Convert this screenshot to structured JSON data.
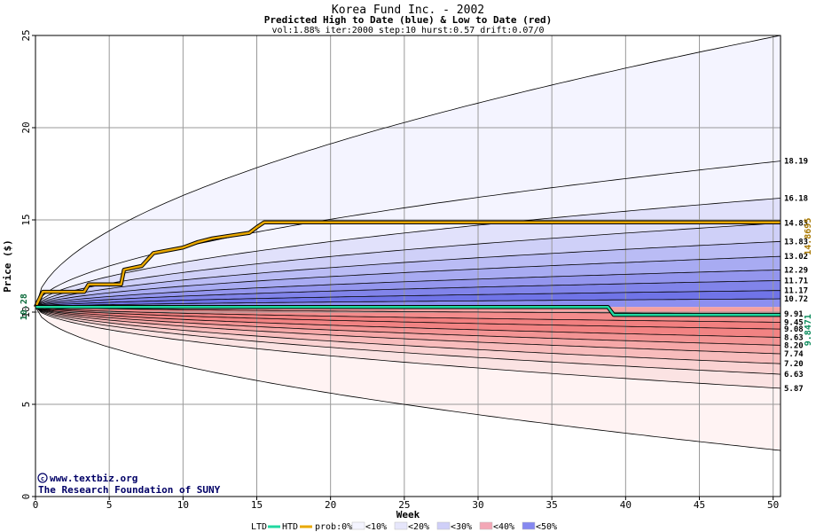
{
  "chart_data": {
    "type": "area",
    "title": "Korea Fund Inc. - 2002",
    "subtitle": "Predicted High to Date (blue) &  Low to Date (red)",
    "params": "vol:1.88% iter:2000 step:10 hurst:0.57 drift:0.07/0",
    "xlabel": "Week",
    "ylabel": "Price ($)",
    "xlim": [
      0,
      50.5
    ],
    "ylim": [
      0,
      25
    ],
    "xticks": [
      0,
      5,
      10,
      15,
      20,
      25,
      30,
      35,
      40,
      45,
      50
    ],
    "yticks": [
      0,
      5,
      10,
      15,
      20,
      25
    ],
    "grid": true,
    "start_price": 10.28,
    "start_price_label": "10.28",
    "max_htd": 14.8695,
    "max_htd_label": "14.8695",
    "min_ltd": 9.8471,
    "min_ltd_label": "9.8471",
    "high_levels": [
      18.19,
      16.18,
      14.83,
      13.83,
      13.02,
      12.29,
      11.71,
      11.17,
      10.72
    ],
    "high_labels": [
      "18.19",
      "16.18",
      "14.83",
      "13.83",
      "13.02",
      "12.29",
      "11.71",
      "11.17",
      "10.72"
    ],
    "low_levels": [
      9.91,
      9.45,
      9.08,
      8.63,
      8.2,
      7.74,
      7.2,
      6.63,
      5.87
    ],
    "low_labels": [
      "9.91",
      "9.45",
      "9.08",
      "8.63",
      "8.20",
      "7.74",
      "7.20",
      "6.63",
      "5.87"
    ],
    "high_outer_end": 25,
    "low_outer_end": 2.5,
    "htd_series": [
      [
        0,
        10.28
      ],
      [
        0.5,
        11.1
      ],
      [
        3.3,
        11.1
      ],
      [
        3.6,
        11.5
      ],
      [
        5.8,
        11.5
      ],
      [
        6.0,
        12.3
      ],
      [
        7.2,
        12.5
      ],
      [
        8.0,
        13.2
      ],
      [
        10.0,
        13.5
      ],
      [
        11.0,
        13.8
      ],
      [
        12.0,
        14.0
      ],
      [
        14.5,
        14.3
      ],
      [
        15.0,
        14.6
      ],
      [
        15.5,
        14.87
      ],
      [
        50.5,
        14.87
      ]
    ],
    "ltd_series": [
      [
        0,
        10.28
      ],
      [
        38.8,
        10.28
      ],
      [
        39.2,
        9.85
      ],
      [
        50.5,
        9.85
      ]
    ],
    "high_fill_colors": [
      "#f4f4ff",
      "#e1e1fb",
      "#cfd0f8",
      "#babcf5",
      "#a8abf2",
      "#9496ee",
      "#8184ea",
      "#7074e8",
      "#8c8ff0"
    ],
    "low_fill_colors": [
      "#fbe3e3",
      "#fad2d2",
      "#f8bcbc",
      "#f6a8a8",
      "#f39494",
      "#f28383",
      "#f28080",
      "#f48c8c",
      "#f6a1a1"
    ],
    "high_outer_fill": "#f4f4ff",
    "low_outer_fill": "#fff3f3",
    "htd_color": "#e8a800",
    "ltd_color": "#20d8a0",
    "max_htd_color": "#a87800",
    "min_ltd_color": "#0a8a5a"
  },
  "credits": {
    "site": "www.textbiz.org",
    "org": "The Research Foundation of SUNY"
  },
  "legend": {
    "ltd": "LTD",
    "htd": "HTD",
    "prob_prefix": "prob:0%",
    "items": [
      "<10%",
      "<20%",
      "<30%",
      "<40%",
      "<50%"
    ],
    "swatch_colors": [
      "#f4f4ff",
      "#e6e6fb",
      "#cfcff8",
      "#f3a7b6",
      "#8588f0"
    ]
  }
}
